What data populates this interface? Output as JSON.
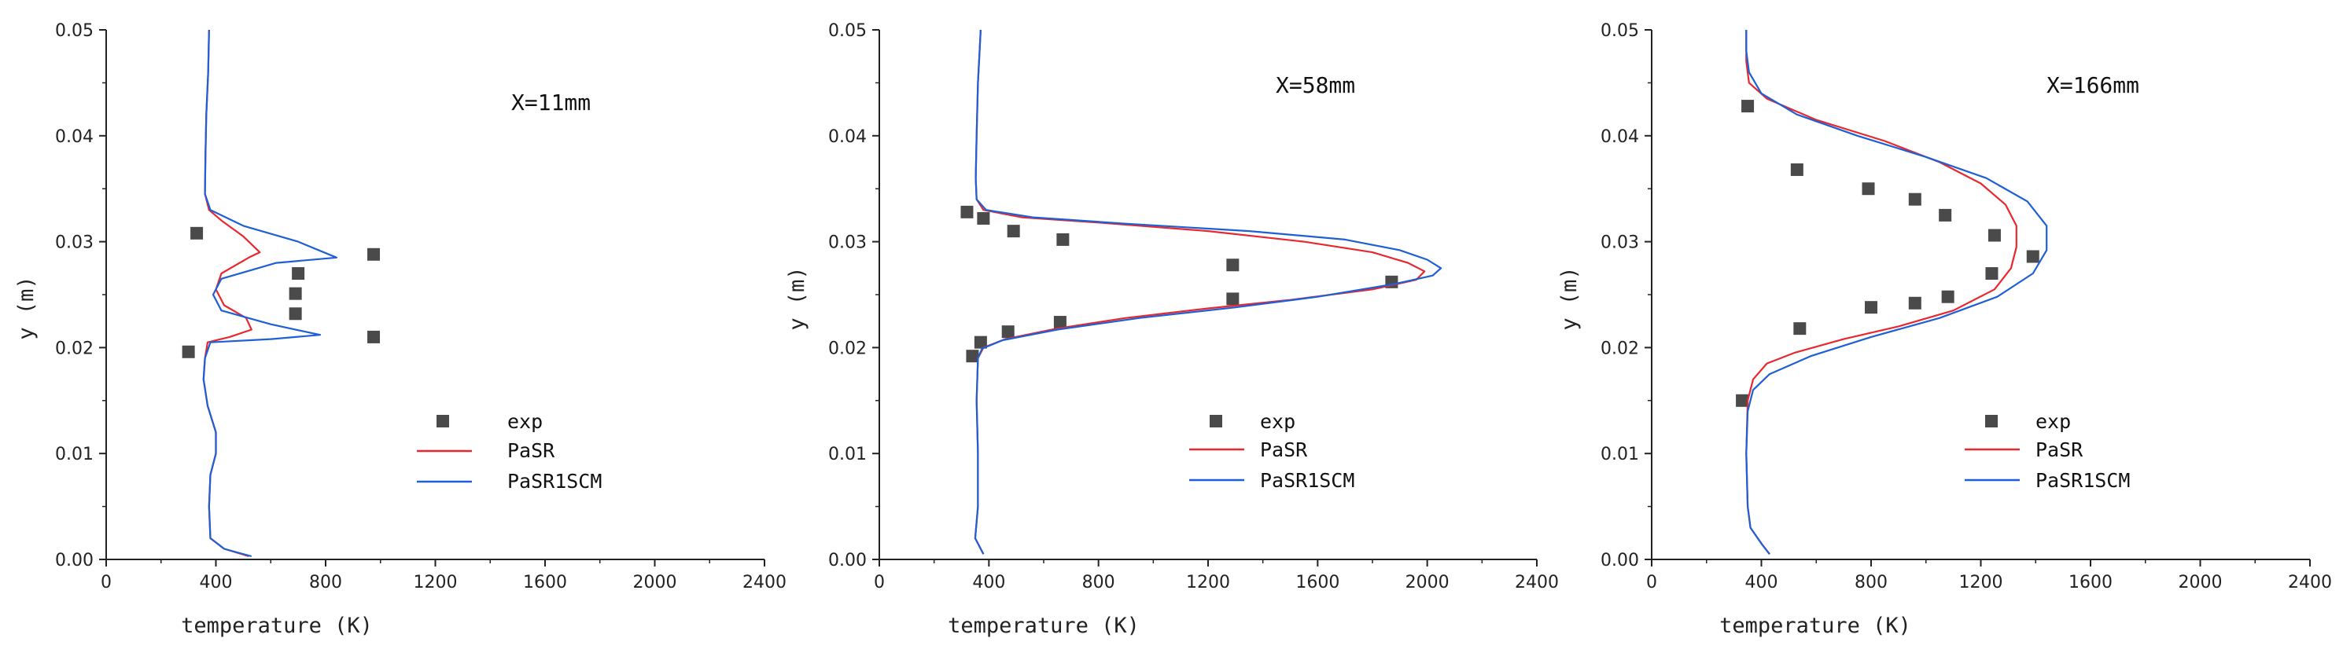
{
  "chart_data": [
    {
      "type": "line",
      "annotation": "X=11mm",
      "xlabel": "temperature (K)",
      "ylabel": "y (m)",
      "xlim": [
        0,
        2400
      ],
      "ylim": [
        0,
        0.05
      ],
      "xticks": [
        "0",
        "400",
        "800",
        "1200",
        "1600",
        "2000",
        "2400"
      ],
      "yticks": [
        "0.00",
        "0.01",
        "0.02",
        "0.03",
        "0.04",
        "0.05"
      ],
      "legend_position": "lower-right",
      "series": [
        {
          "name": "exp",
          "kind": "scatter",
          "color": "#4a4a4a",
          "points": [
            [
              330,
              0.0308
            ],
            [
              300,
              0.0196
            ],
            [
              700,
              0.027
            ],
            [
              690,
              0.0251
            ],
            [
              690,
              0.0232
            ],
            [
              975,
              0.0288
            ],
            [
              975,
              0.021
            ]
          ]
        },
        {
          "name": "PaSR",
          "kind": "line",
          "color": "#e8282f",
          "points": [
            [
              375,
              0.05
            ],
            [
              372,
              0.046
            ],
            [
              365,
              0.042
            ],
            [
              362,
              0.038
            ],
            [
              360,
              0.0345
            ],
            [
              375,
              0.033
            ],
            [
              420,
              0.032
            ],
            [
              500,
              0.0305
            ],
            [
              560,
              0.029
            ],
            [
              520,
              0.0285
            ],
            [
              420,
              0.027
            ],
            [
              400,
              0.0255
            ],
            [
              430,
              0.024
            ],
            [
              510,
              0.0228
            ],
            [
              530,
              0.0217
            ],
            [
              450,
              0.021
            ],
            [
              370,
              0.0205
            ],
            [
              360,
              0.019
            ],
            [
              355,
              0.017
            ],
            [
              370,
              0.0145
            ],
            [
              400,
              0.012
            ],
            [
              400,
              0.01
            ],
            [
              380,
              0.008
            ],
            [
              375,
              0.005
            ],
            [
              380,
              0.002
            ],
            [
              430,
              0.001
            ],
            [
              520,
              0.0003
            ]
          ]
        },
        {
          "name": "PaSR1SCM",
          "kind": "line",
          "color": "#1f5fd6",
          "points": [
            [
              375,
              0.05
            ],
            [
              372,
              0.046
            ],
            [
              365,
              0.042
            ],
            [
              362,
              0.038
            ],
            [
              360,
              0.0345
            ],
            [
              380,
              0.033
            ],
            [
              500,
              0.0315
            ],
            [
              700,
              0.03
            ],
            [
              840,
              0.0285
            ],
            [
              620,
              0.028
            ],
            [
              420,
              0.0265
            ],
            [
              390,
              0.025
            ],
            [
              420,
              0.0235
            ],
            [
              600,
              0.0222
            ],
            [
              780,
              0.0212
            ],
            [
              600,
              0.0208
            ],
            [
              380,
              0.0205
            ],
            [
              360,
              0.019
            ],
            [
              355,
              0.017
            ],
            [
              370,
              0.0145
            ],
            [
              400,
              0.012
            ],
            [
              400,
              0.01
            ],
            [
              380,
              0.008
            ],
            [
              375,
              0.005
            ],
            [
              380,
              0.002
            ],
            [
              430,
              0.001
            ],
            [
              530,
              0.0003
            ]
          ]
        }
      ]
    },
    {
      "type": "line",
      "annotation": "X=58mm",
      "xlabel": "temperature (K)",
      "ylabel": "y (m)",
      "xlim": [
        0,
        2400
      ],
      "ylim": [
        0,
        0.05
      ],
      "xticks": [
        "0",
        "400",
        "800",
        "1200",
        "1600",
        "2000",
        "2400"
      ],
      "yticks": [
        "0.00",
        "0.01",
        "0.02",
        "0.03",
        "0.04",
        "0.05"
      ],
      "legend_position": "lower-right",
      "series": [
        {
          "name": "exp",
          "kind": "scatter",
          "color": "#4a4a4a",
          "points": [
            [
              320,
              0.0328
            ],
            [
              380,
              0.0322
            ],
            [
              490,
              0.031
            ],
            [
              670,
              0.0302
            ],
            [
              1290,
              0.0278
            ],
            [
              1290,
              0.0246
            ],
            [
              1870,
              0.0262
            ],
            [
              660,
              0.0224
            ],
            [
              470,
              0.0215
            ],
            [
              370,
              0.0205
            ],
            [
              340,
              0.0192
            ]
          ]
        },
        {
          "name": "PaSR",
          "kind": "line",
          "color": "#e8282f",
          "points": [
            [
              370,
              0.05
            ],
            [
              360,
              0.045
            ],
            [
              355,
              0.04
            ],
            [
              352,
              0.036
            ],
            [
              355,
              0.034
            ],
            [
              380,
              0.033
            ],
            [
              520,
              0.0323
            ],
            [
              800,
              0.0318
            ],
            [
              1200,
              0.031
            ],
            [
              1550,
              0.03
            ],
            [
              1800,
              0.029
            ],
            [
              1930,
              0.028
            ],
            [
              1990,
              0.0272
            ],
            [
              1960,
              0.0264
            ],
            [
              1800,
              0.0255
            ],
            [
              1500,
              0.0245
            ],
            [
              1200,
              0.0237
            ],
            [
              900,
              0.0228
            ],
            [
              650,
              0.0218
            ],
            [
              460,
              0.0208
            ],
            [
              380,
              0.02
            ],
            [
              360,
              0.019
            ],
            [
              355,
              0.015
            ],
            [
              360,
              0.01
            ],
            [
              360,
              0.005
            ],
            [
              350,
              0.002
            ],
            [
              380,
              0.0005
            ]
          ]
        },
        {
          "name": "PaSR1SCM",
          "kind": "line",
          "color": "#1f5fd6",
          "points": [
            [
              370,
              0.05
            ],
            [
              360,
              0.045
            ],
            [
              355,
              0.04
            ],
            [
              352,
              0.036
            ],
            [
              355,
              0.034
            ],
            [
              390,
              0.033
            ],
            [
              560,
              0.0323
            ],
            [
              900,
              0.0317
            ],
            [
              1350,
              0.031
            ],
            [
              1700,
              0.0302
            ],
            [
              1900,
              0.0292
            ],
            [
              2000,
              0.0283
            ],
            [
              2050,
              0.0275
            ],
            [
              2020,
              0.0268
            ],
            [
              1880,
              0.026
            ],
            [
              1600,
              0.0248
            ],
            [
              1300,
              0.0238
            ],
            [
              950,
              0.0228
            ],
            [
              650,
              0.0217
            ],
            [
              450,
              0.0207
            ],
            [
              375,
              0.0199
            ],
            [
              360,
              0.019
            ],
            [
              355,
              0.015
            ],
            [
              360,
              0.01
            ],
            [
              360,
              0.005
            ],
            [
              350,
              0.002
            ],
            [
              380,
              0.0005
            ]
          ]
        }
      ]
    },
    {
      "type": "line",
      "annotation": "X=166mm",
      "xlabel": "temperature (K)",
      "ylabel": "y (m)",
      "xlim": [
        0,
        2400
      ],
      "ylim": [
        0,
        0.05
      ],
      "xticks": [
        "0",
        "400",
        "800",
        "1200",
        "1600",
        "2000",
        "2400"
      ],
      "yticks": [
        "0.00",
        "0.01",
        "0.02",
        "0.03",
        "0.04",
        "0.05"
      ],
      "legend_position": "lower-right",
      "series": [
        {
          "name": "exp",
          "kind": "scatter",
          "color": "#4a4a4a",
          "points": [
            [
              350,
              0.0428
            ],
            [
              530,
              0.0368
            ],
            [
              790,
              0.035
            ],
            [
              960,
              0.034
            ],
            [
              1070,
              0.0325
            ],
            [
              1250,
              0.0306
            ],
            [
              1240,
              0.027
            ],
            [
              1390,
              0.0286
            ],
            [
              1080,
              0.0248
            ],
            [
              960,
              0.0242
            ],
            [
              800,
              0.0238
            ],
            [
              540,
              0.0218
            ],
            [
              330,
              0.015
            ]
          ]
        },
        {
          "name": "PaSR",
          "kind": "line",
          "color": "#e8282f",
          "points": [
            [
              345,
              0.05
            ],
            [
              345,
              0.047
            ],
            [
              355,
              0.045
            ],
            [
              420,
              0.0435
            ],
            [
              600,
              0.0415
            ],
            [
              850,
              0.0395
            ],
            [
              1050,
              0.0375
            ],
            [
              1200,
              0.0355
            ],
            [
              1290,
              0.0335
            ],
            [
              1330,
              0.0315
            ],
            [
              1330,
              0.0295
            ],
            [
              1310,
              0.0275
            ],
            [
              1250,
              0.0255
            ],
            [
              1100,
              0.0235
            ],
            [
              900,
              0.022
            ],
            [
              700,
              0.0208
            ],
            [
              520,
              0.0195
            ],
            [
              420,
              0.0185
            ],
            [
              370,
              0.017
            ],
            [
              350,
              0.015
            ],
            [
              345,
              0.01
            ],
            [
              350,
              0.005
            ],
            [
              360,
              0.003
            ],
            [
              400,
              0.0015
            ],
            [
              430,
              0.0005
            ]
          ]
        },
        {
          "name": "PaSR1SCM",
          "kind": "line",
          "color": "#1f5fd6",
          "points": [
            [
              345,
              0.05
            ],
            [
              345,
              0.048
            ],
            [
              355,
              0.046
            ],
            [
              400,
              0.044
            ],
            [
              530,
              0.042
            ],
            [
              750,
              0.04
            ],
            [
              1000,
              0.038
            ],
            [
              1220,
              0.036
            ],
            [
              1370,
              0.0338
            ],
            [
              1440,
              0.0315
            ],
            [
              1440,
              0.0292
            ],
            [
              1390,
              0.027
            ],
            [
              1260,
              0.0248
            ],
            [
              1050,
              0.0228
            ],
            [
              800,
              0.021
            ],
            [
              580,
              0.0192
            ],
            [
              430,
              0.0175
            ],
            [
              370,
              0.016
            ],
            [
              350,
              0.014
            ],
            [
              345,
              0.01
            ],
            [
              350,
              0.005
            ],
            [
              360,
              0.003
            ],
            [
              400,
              0.0015
            ],
            [
              430,
              0.0005
            ]
          ]
        }
      ]
    }
  ]
}
